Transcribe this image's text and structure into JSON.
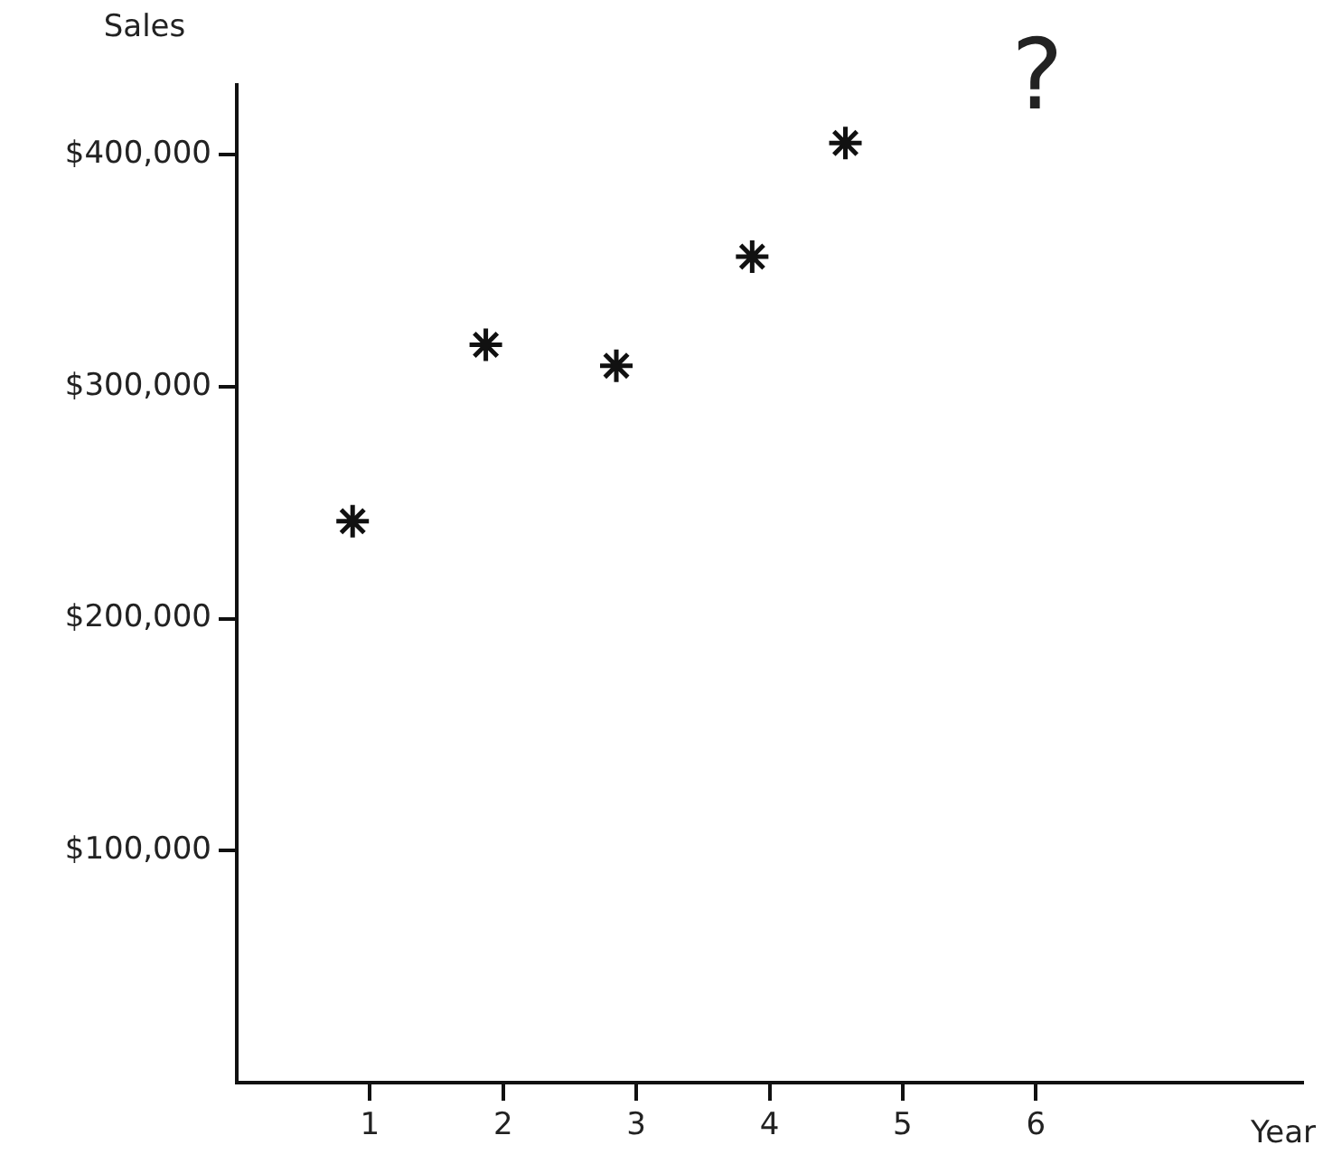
{
  "chart_data": {
    "type": "scatter",
    "xlabel": "Year",
    "ylabel": "Sales",
    "x": [
      0.87,
      1.87,
      2.85,
      3.87,
      4.57
    ],
    "series": [
      {
        "color": "#111111",
        "values": [
          242000,
          318000,
          309000,
          356000,
          405000
        ]
      }
    ],
    "marker": "cross",
    "grid": false,
    "legend": false,
    "xlim": [
      0,
      8
    ],
    "xticks": [
      1,
      2,
      3,
      4,
      5,
      6
    ],
    "ylim": [
      0,
      430000
    ],
    "yticks": [
      {
        "value": 100000,
        "label": "$100,000"
      },
      {
        "value": 200000,
        "label": "$200,000"
      },
      {
        "value": 300000,
        "label": "$300,000"
      },
      {
        "value": 400000,
        "label": "$400,000"
      }
    ],
    "annotations": [
      "?"
    ]
  }
}
